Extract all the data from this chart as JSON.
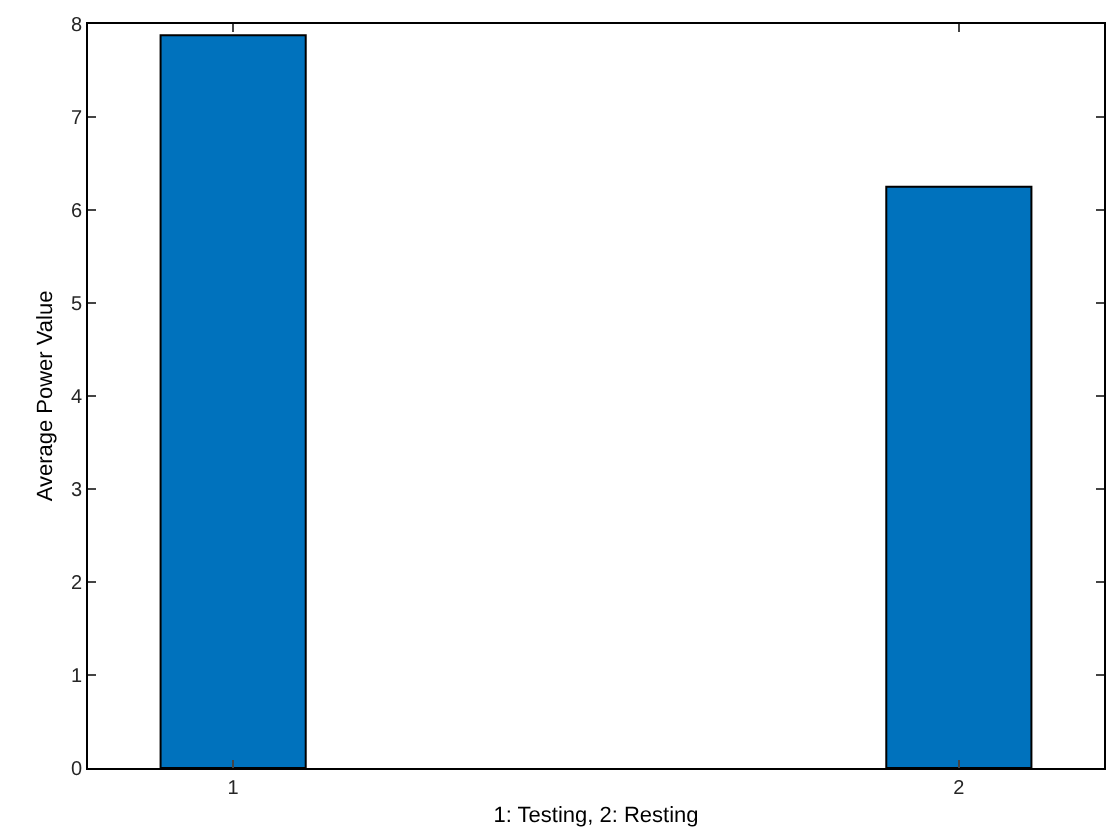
{
  "chart_data": {
    "type": "bar",
    "xlabel": "1: Testing, 2: Resting",
    "ylabel": "Average Power Value",
    "categories": [
      "1",
      "2"
    ],
    "values": [
      7.88,
      6.25
    ],
    "color": "#0072bd",
    "ylim": [
      0,
      8
    ],
    "yticks": [
      0,
      1,
      2,
      3,
      4,
      5,
      6,
      7,
      8
    ]
  }
}
